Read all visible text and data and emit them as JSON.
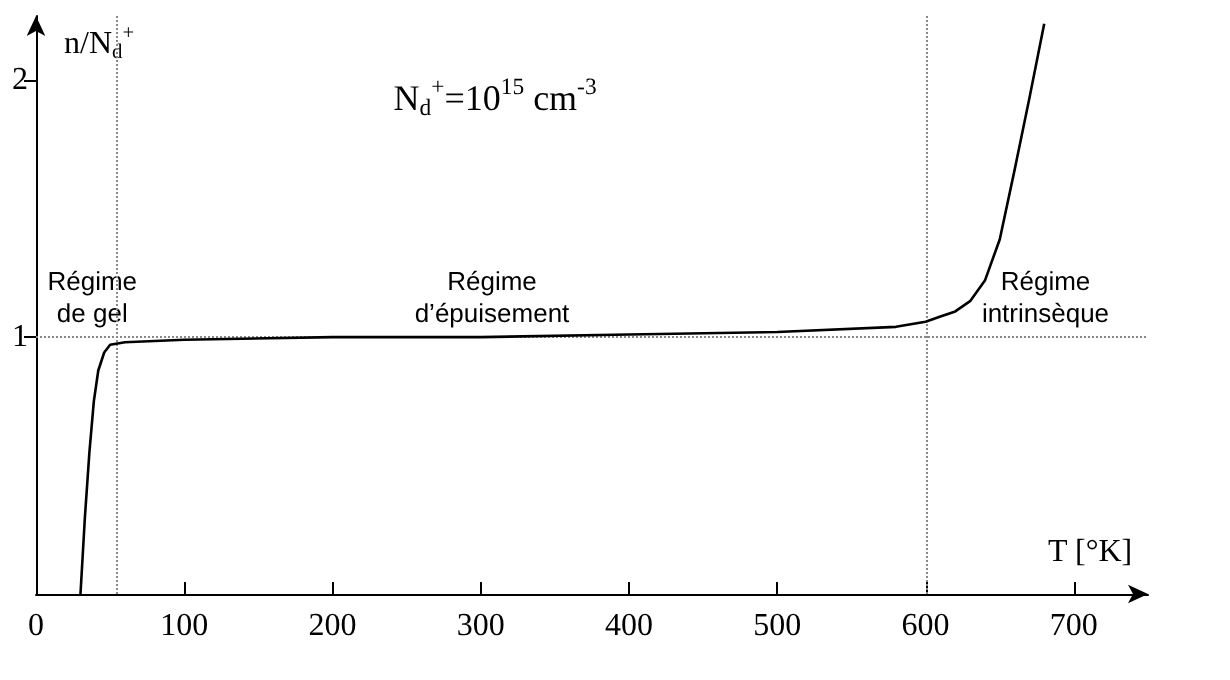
{
  "chart_data": {
    "type": "line",
    "xlabel": "T [°K]",
    "ylabel": "n/N$_{d}$$^{+}$",
    "annotations": [
      "N$_{d}$$^{+}$=10$^{15}$ cm$^{-3}$",
      "Régime\nde gel",
      "Régime\nd’épuisement",
      "Régime\nintrinsèque"
    ],
    "series": [
      {
        "color": "#000000",
        "x": [
          30,
          33,
          36,
          39,
          42,
          46,
          50,
          60,
          100,
          200,
          300,
          400,
          500,
          580,
          600,
          610,
          620,
          630,
          640,
          650,
          660,
          670,
          680
        ],
        "values": [
          0,
          0.3,
          0.55,
          0.75,
          0.87,
          0.94,
          0.97,
          0.98,
          0.99,
          1.0,
          1.0,
          1.01,
          1.02,
          1.04,
          1.06,
          1.08,
          1.1,
          1.14,
          1.22,
          1.38,
          1.65,
          1.93,
          2.22
        ]
      }
    ],
    "xlim": [
      0,
      750
    ],
    "xticks": [
      0,
      100,
      200,
      300,
      400,
      500,
      600,
      700
    ],
    "ylim": [
      0,
      2.25
    ],
    "yticks": [
      1,
      2
    ],
    "ref_lines": [
      {
        "axis": "y",
        "value": 1,
        "color": "#888888",
        "line_style": "dotted"
      },
      {
        "axis": "x",
        "value": 54,
        "color": "#888888",
        "line_style": "dotted"
      },
      {
        "axis": "x",
        "value": 600,
        "color": "#888888",
        "line_style": "dotted"
      }
    ],
    "grid": false,
    "marker": "none",
    "line_style": "solid"
  }
}
